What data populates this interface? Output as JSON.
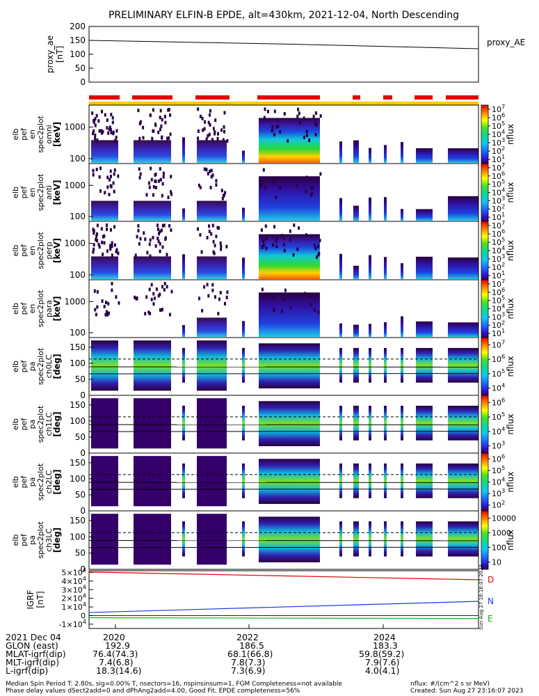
{
  "title": "PRELIMINARY ELFIN-B EPDE, alt=430km, 2021-12-04, North Descending",
  "chart_data": [
    {
      "type": "line",
      "panel": "proxy_ae",
      "ylabel_lines": [
        "proxy_ae",
        "[nT]"
      ],
      "legend": "proxy_AE",
      "yticks": [
        "0",
        "50",
        "100",
        "150",
        "200"
      ],
      "ylim": [
        0,
        200
      ],
      "x": [
        0,
        0.5,
        1
      ],
      "values": [
        150,
        137,
        120
      ]
    },
    {
      "type": "heatmap",
      "panel": "elb_pef_en_spec2plot_omni",
      "ylabel_lines": [
        "elb",
        "pef",
        "en",
        "spec2plot",
        "omni",
        "[keV]"
      ],
      "yscale": "log",
      "yticks": [
        "100",
        "1000"
      ],
      "colorbar_label": "nflux",
      "colorbar_ticks": [
        "10^1",
        "10^2",
        "10^3",
        "10^4",
        "10^5",
        "10^6",
        "10^7"
      ]
    },
    {
      "type": "heatmap",
      "panel": "elb_pef_en_spec2plot_anti",
      "ylabel_lines": [
        "elb",
        "pef",
        "en",
        "spec2plot",
        "anti",
        "[keV]"
      ],
      "yscale": "log",
      "yticks": [
        "100",
        "1000"
      ],
      "colorbar_label": "nflux",
      "colorbar_ticks": [
        "10^1",
        "10^2",
        "10^3",
        "10^4",
        "10^5",
        "10^6",
        "10^7"
      ]
    },
    {
      "type": "heatmap",
      "panel": "elb_pef_en_spec2plot_perp",
      "ylabel_lines": [
        "elb",
        "pef",
        "en",
        "spec2plot",
        "perp",
        "[keV]"
      ],
      "yscale": "log",
      "yticks": [
        "100",
        "1000"
      ],
      "colorbar_label": "nflux",
      "colorbar_ticks": [
        "10^1",
        "10^2",
        "10^3",
        "10^4",
        "10^5",
        "10^6",
        "10^7"
      ]
    },
    {
      "type": "heatmap",
      "panel": "elb_pef_en_spec2plot_para",
      "ylabel_lines": [
        "elb",
        "pef",
        "en",
        "spec2plot",
        "para",
        "[keV]"
      ],
      "yscale": "log",
      "yticks": [
        "100",
        "1000"
      ],
      "colorbar_label": "nflux",
      "colorbar_ticks": [
        "10^1",
        "10^2",
        "10^3",
        "10^4",
        "10^5",
        "10^6",
        "10^7"
      ]
    },
    {
      "type": "heatmap",
      "panel": "elb_pef_pa_spec2plot_ch0LC",
      "ylabel_lines": [
        "elb",
        "pef",
        "pa",
        "spec2plot",
        "ch0LC",
        "[deg]"
      ],
      "yticks": [
        "0",
        "50",
        "100",
        "150"
      ],
      "ylim": [
        0,
        180
      ],
      "colorbar_label": "nflux",
      "colorbar_ticks": [
        "10^4",
        "10^5",
        "10^6",
        "10^7"
      ]
    },
    {
      "type": "heatmap",
      "panel": "elb_pef_pa_spec2plot_ch1LC",
      "ylabel_lines": [
        "elb",
        "pef",
        "pa",
        "spec2plot",
        "ch1LC",
        "[deg]"
      ],
      "yticks": [
        "0",
        "50",
        "100",
        "150"
      ],
      "ylim": [
        0,
        180
      ],
      "colorbar_label": "nflux",
      "colorbar_ticks": [
        "10^3",
        "10^4",
        "10^5",
        "10^6"
      ]
    },
    {
      "type": "heatmap",
      "panel": "elb_pef_pa_spec2plot_ch2LC",
      "ylabel_lines": [
        "elb",
        "pef",
        "pa",
        "spec2plot",
        "ch2LC",
        "[deg]"
      ],
      "yticks": [
        "0",
        "50",
        "100",
        "150"
      ],
      "ylim": [
        0,
        180
      ],
      "colorbar_label": "nflux",
      "colorbar_ticks": [
        "10^2",
        "10^3",
        "10^4",
        "10^5",
        "10^6"
      ]
    },
    {
      "type": "heatmap",
      "panel": "elb_pef_pa_spec2plot_ch3LC",
      "ylabel_lines": [
        "elb",
        "pef",
        "pa",
        "spec2plot",
        "ch3LC",
        "[deg]"
      ],
      "yticks": [
        "0",
        "50",
        "100",
        "150"
      ],
      "ylim": [
        0,
        180
      ],
      "colorbar_label": "nflux",
      "colorbar_ticks": [
        "10",
        "100",
        "1000",
        "10000"
      ]
    },
    {
      "type": "line",
      "panel": "IGRF",
      "ylabel_lines": [
        "IGRF",
        "[nT]"
      ],
      "yticks": [
        "-1×10^4",
        "0",
        "1×10^4",
        "2×10^4",
        "3×10^4",
        "4×10^4",
        "5×10^4"
      ],
      "ylim": [
        -15000,
        52000
      ],
      "x": [
        0,
        1
      ],
      "series": [
        {
          "name": "D",
          "color": "#dd0000",
          "values": [
            50500,
            41500
          ]
        },
        {
          "name": "N",
          "color": "#1a3adc",
          "values": [
            3500,
            16500
          ]
        },
        {
          "name": "E",
          "color": "#10b010",
          "values": [
            -2500,
            -3500
          ]
        }
      ]
    }
  ],
  "colors": {
    "red_bar": "#e00000",
    "yellow_bar": "#ffc800"
  },
  "stamp": "Sun Aug 27 16:16:07 2023",
  "footer": {
    "rows": [
      {
        "label": "2021 Dec 04",
        "values": [
          "2020",
          "2022",
          "2024"
        ]
      },
      {
        "label": "GLON (east)",
        "values": [
          "192.9",
          "186.5",
          "183.3"
        ]
      },
      {
        "label": "MLAT-igrf(dip)",
        "values": [
          "76.4(74.3)",
          "68.1(66.8)",
          "59.8(59.2)"
        ]
      },
      {
        "label": "MLT-igrf(dip)",
        "values": [
          "7.4(6.8)",
          "7.8(7.3)",
          "7.9(7.6)"
        ]
      },
      {
        "label": "L-igrf(dip)",
        "values": [
          "18.3(14.6)",
          "7.3(6.9)",
          "4.0(4.1)"
        ]
      }
    ],
    "note1": "Median Spin Period T: 2.80s, sig=0.00% T, nsectors=16, nspinsinsum=1, FGM Completeness=not available",
    "note2": "Phase delay values dSect2add=0 and dPhAng2add=4.00, Good Fit, EPDE completeness=56%",
    "units": "nflux: #/(cm^2 s sr MeV)",
    "created": "Created: Sun Aug 27 23:16:07 2023"
  }
}
